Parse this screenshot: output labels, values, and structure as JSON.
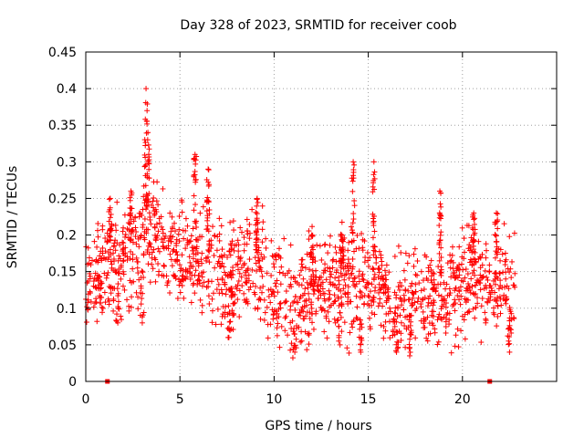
{
  "chart_data": {
    "type": "scatter",
    "title": "Day 328 of 2023, SRMTID for receiver coob",
    "xlabel": "GPS time / hours",
    "ylabel": "SRMTID / TECUs",
    "xlim": [
      0,
      25
    ],
    "ylim": [
      0,
      0.45
    ],
    "xticks": [
      0,
      5,
      10,
      15,
      20
    ],
    "xtick_labels": [
      "0",
      "5",
      "10",
      "15",
      "20"
    ],
    "yticks": [
      0,
      0.05,
      0.1,
      0.15,
      0.2,
      0.25,
      0.3,
      0.35,
      0.4,
      0.45
    ],
    "ytick_labels": [
      "0",
      "0.05",
      "0.1",
      "0.15",
      "0.2",
      "0.25",
      "0.3",
      "0.35",
      "0.4",
      "0.45"
    ],
    "grid": true,
    "marker": "+",
    "color": "#ff0000",
    "zero_markers_x": [
      1.15,
      21.45
    ],
    "profile": [
      {
        "x": 0.0,
        "y": 0.14
      },
      {
        "x": 0.5,
        "y": 0.15
      },
      {
        "x": 1.0,
        "y": 0.15
      },
      {
        "x": 1.5,
        "y": 0.17
      },
      {
        "x": 2.0,
        "y": 0.16
      },
      {
        "x": 2.5,
        "y": 0.18
      },
      {
        "x": 3.0,
        "y": 0.2
      },
      {
        "x": 3.5,
        "y": 0.2
      },
      {
        "x": 4.0,
        "y": 0.19
      },
      {
        "x": 4.5,
        "y": 0.18
      },
      {
        "x": 5.0,
        "y": 0.17
      },
      {
        "x": 5.5,
        "y": 0.17
      },
      {
        "x": 6.0,
        "y": 0.16
      },
      {
        "x": 6.5,
        "y": 0.16
      },
      {
        "x": 7.0,
        "y": 0.15
      },
      {
        "x": 7.5,
        "y": 0.14
      },
      {
        "x": 8.0,
        "y": 0.14
      },
      {
        "x": 8.5,
        "y": 0.15
      },
      {
        "x": 9.0,
        "y": 0.16
      },
      {
        "x": 9.5,
        "y": 0.14
      },
      {
        "x": 10.0,
        "y": 0.12
      },
      {
        "x": 10.5,
        "y": 0.11
      },
      {
        "x": 11.0,
        "y": 0.1
      },
      {
        "x": 11.5,
        "y": 0.11
      },
      {
        "x": 12.0,
        "y": 0.12
      },
      {
        "x": 12.5,
        "y": 0.13
      },
      {
        "x": 13.0,
        "y": 0.14
      },
      {
        "x": 13.5,
        "y": 0.14
      },
      {
        "x": 14.0,
        "y": 0.13
      },
      {
        "x": 14.5,
        "y": 0.12
      },
      {
        "x": 15.0,
        "y": 0.13
      },
      {
        "x": 15.5,
        "y": 0.13
      },
      {
        "x": 16.0,
        "y": 0.11
      },
      {
        "x": 16.5,
        "y": 0.1
      },
      {
        "x": 17.0,
        "y": 0.11
      },
      {
        "x": 17.5,
        "y": 0.12
      },
      {
        "x": 18.0,
        "y": 0.12
      },
      {
        "x": 18.5,
        "y": 0.12
      },
      {
        "x": 19.0,
        "y": 0.13
      },
      {
        "x": 19.5,
        "y": 0.13
      },
      {
        "x": 20.0,
        "y": 0.13
      },
      {
        "x": 20.5,
        "y": 0.14
      },
      {
        "x": 21.0,
        "y": 0.14
      },
      {
        "x": 21.5,
        "y": 0.13
      },
      {
        "x": 22.0,
        "y": 0.13
      },
      {
        "x": 22.5,
        "y": 0.13
      },
      {
        "x": 22.8,
        "y": 0.12
      }
    ],
    "peaks": [
      {
        "x": 3.2,
        "y": 0.4
      },
      {
        "x": 3.3,
        "y": 0.34
      },
      {
        "x": 5.8,
        "y": 0.31
      },
      {
        "x": 6.5,
        "y": 0.29
      },
      {
        "x": 9.1,
        "y": 0.25
      },
      {
        "x": 14.2,
        "y": 0.3
      },
      {
        "x": 15.3,
        "y": 0.3
      },
      {
        "x": 18.8,
        "y": 0.26
      },
      {
        "x": 20.6,
        "y": 0.23
      },
      {
        "x": 21.8,
        "y": 0.23
      },
      {
        "x": 12.0,
        "y": 0.2
      },
      {
        "x": 13.6,
        "y": 0.2
      },
      {
        "x": 1.3,
        "y": 0.25
      },
      {
        "x": 2.4,
        "y": 0.26
      }
    ],
    "troughs": [
      {
        "x": 3.0,
        "y": 0.08
      },
      {
        "x": 7.6,
        "y": 0.06
      },
      {
        "x": 11.1,
        "y": 0.04
      },
      {
        "x": 13.5,
        "y": 0.05
      },
      {
        "x": 14.6,
        "y": 0.04
      },
      {
        "x": 16.5,
        "y": 0.04
      },
      {
        "x": 17.2,
        "y": 0.035
      },
      {
        "x": 22.5,
        "y": 0.04
      },
      {
        "x": 1.7,
        "y": 0.08
      }
    ]
  }
}
